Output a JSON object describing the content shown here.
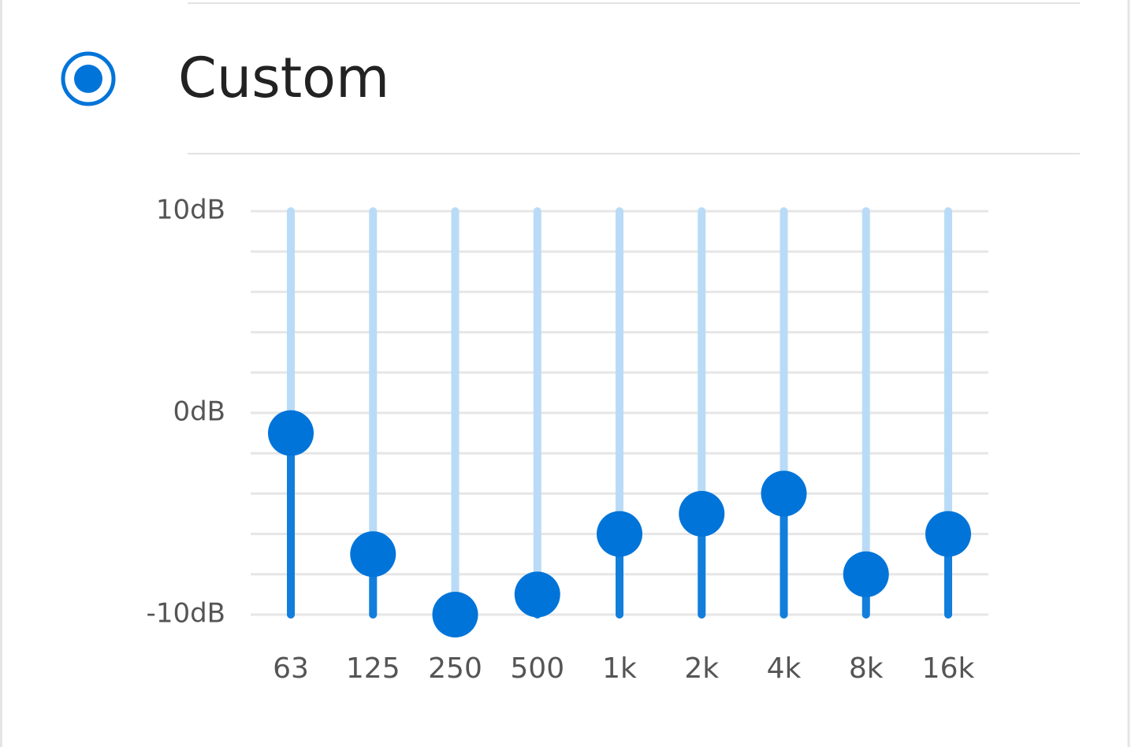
{
  "header": {
    "option_label": "Custom",
    "selected": true
  },
  "chart_data": {
    "type": "equalizer",
    "categories": [
      "63",
      "125",
      "250",
      "500",
      "1k",
      "2k",
      "4k",
      "8k",
      "16k"
    ],
    "values": [
      -1,
      -7,
      -10,
      -9,
      -6,
      -5,
      -4,
      -8,
      -6
    ],
    "color": "#0074d9",
    "track_color": "#b9dbf7",
    "ylim": [
      -10,
      10
    ],
    "yticks": [
      {
        "value": 10,
        "label": "10dB"
      },
      {
        "value": 0,
        "label": "0dB"
      },
      {
        "value": -10,
        "label": "-10dB"
      }
    ],
    "minor_yticks": [
      -8,
      -6,
      -4,
      -2,
      2,
      4,
      6,
      8
    ],
    "grid": true
  }
}
